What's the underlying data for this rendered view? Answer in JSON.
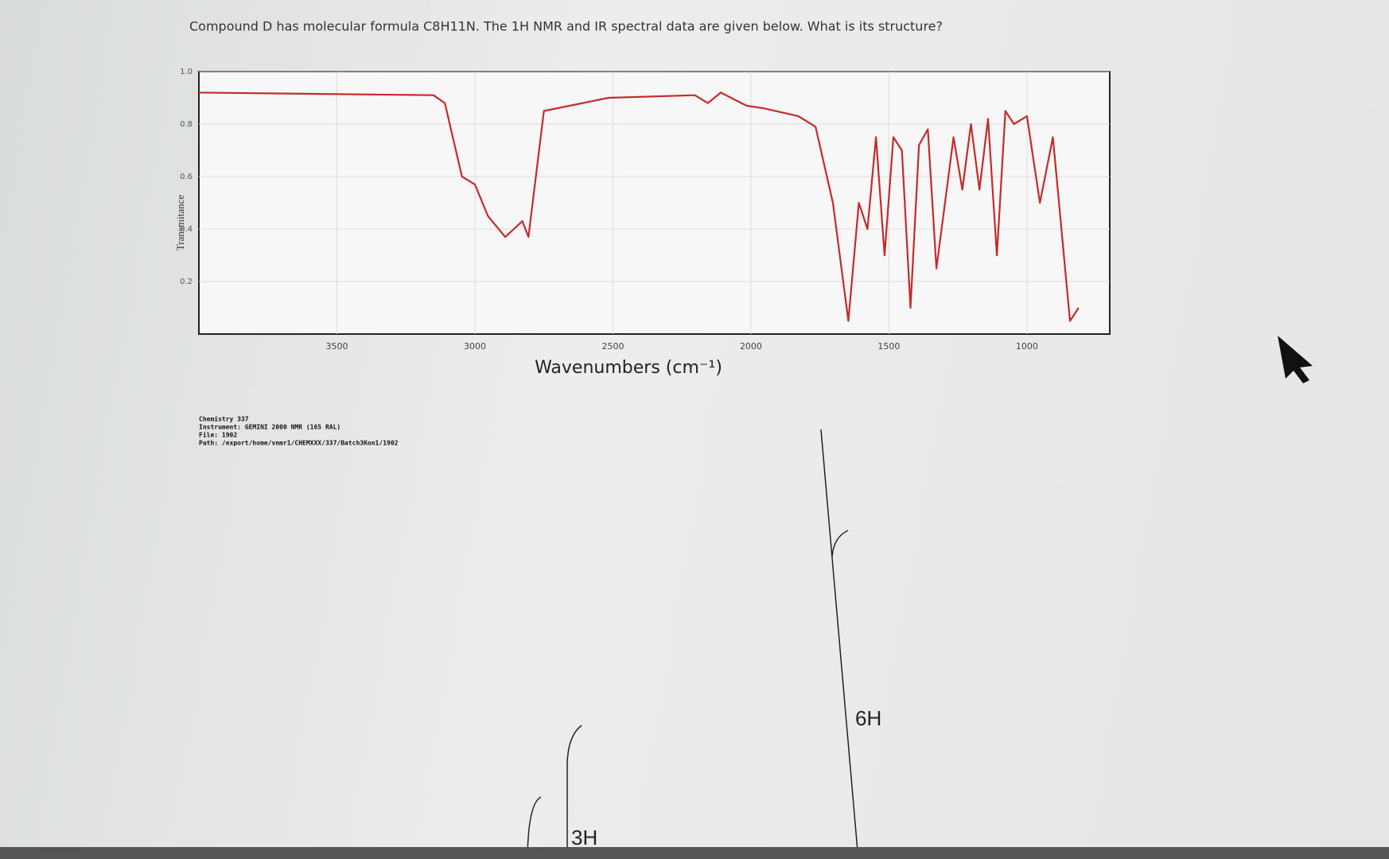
{
  "question": "Compound D has molecular formula C8H11N. The 1H NMR and IR spectral data are given below. What is its structure?",
  "chart_data": {
    "type": "line",
    "ylabel": "Transmitance",
    "xlabel": "Wavenumbers (cm⁻¹)",
    "xlim": [
      4000,
      700
    ],
    "ylim": [
      0,
      1
    ],
    "xticks": [
      3500,
      3000,
      2500,
      2000,
      1500,
      1000
    ],
    "yticks": [
      {
        "value": 1,
        "label": "1.0"
      },
      0.8,
      0.6,
      0.4,
      0.2
    ],
    "grid": true,
    "series": [
      {
        "name": "IR",
        "color": "#c62a2a",
        "x": [
          4000,
          3150,
          3109,
          3047,
          3000,
          2953,
          2890,
          2859,
          2828,
          2806,
          2750,
          2516,
          2203,
          2156,
          2109,
          2016,
          1953,
          1828,
          1766,
          1703,
          1647,
          1609,
          1578,
          1547,
          1516,
          1484,
          1453,
          1422,
          1391,
          1359,
          1328,
          1297,
          1266,
          1234,
          1203,
          1172,
          1141,
          1109,
          1078,
          1047,
          1000,
          953,
          906,
          844,
          813
        ],
        "values": [
          0.92,
          0.91,
          0.88,
          0.6,
          0.57,
          0.45,
          0.37,
          0.4,
          0.43,
          0.37,
          0.85,
          0.9,
          0.91,
          0.88,
          0.92,
          0.87,
          0.86,
          0.83,
          0.79,
          0.5,
          0.05,
          0.5,
          0.4,
          0.75,
          0.3,
          0.75,
          0.7,
          0.1,
          0.72,
          0.78,
          0.25,
          0.5,
          0.75,
          0.55,
          0.8,
          0.55,
          0.82,
          0.3,
          0.85,
          0.8,
          0.83,
          0.5,
          0.75,
          0.05,
          0.1
        ]
      }
    ]
  },
  "instrument_info": [
    "Chemistry 337",
    "Instrument: GEMINI 2000 NMR (165 RAL)",
    "File: 1902",
    "Path: /export/home/vnmr1/CHEMXXX/337/Batch3Kon1/1902"
  ],
  "nmr_labels": [
    "6H",
    "3H"
  ]
}
